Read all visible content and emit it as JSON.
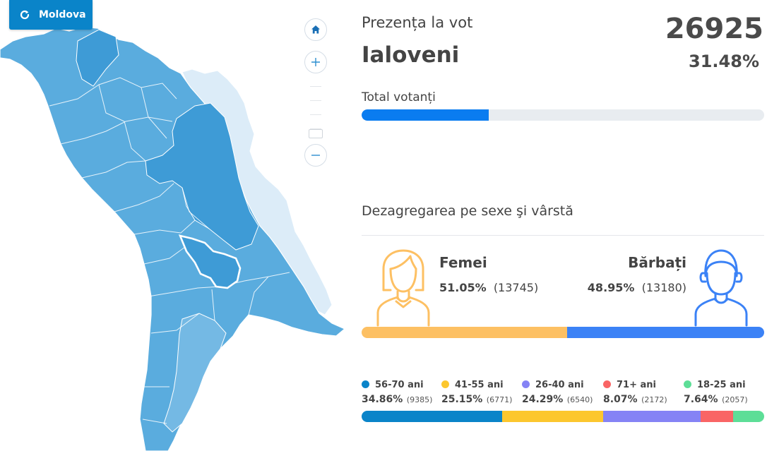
{
  "map": {
    "reset_label": "Moldova",
    "reset_icon": "refresh-icon",
    "zoom_home_icon": "home-icon",
    "zoom_in_icon": "plus-icon",
    "zoom_out_icon": "minus-icon",
    "colors": {
      "dark": "#3e9bd6",
      "mid": "#5aacde",
      "light": "#74b9e4",
      "pale": "#dcecf8",
      "highlight": "#ffffff"
    }
  },
  "turnout": {
    "label": "Prezența la vot",
    "region": "Ialoveni",
    "count": "26925",
    "percent": "31.48%",
    "total_label": "Total votanți",
    "progress_fraction": 0.315,
    "progress_color": "#0a7cf0"
  },
  "breakdown": {
    "title": "Dezagregarea pe sexe şi vârstă",
    "female": {
      "title": "Femei",
      "percent": "51.05%",
      "count": "(13745)",
      "fraction": 0.5105,
      "color": "#fdc063",
      "icon": "female-avatar-icon"
    },
    "male": {
      "title": "Bărbați",
      "percent": "48.95%",
      "count": "(13180)",
      "fraction": 0.4895,
      "color": "#3b82f6",
      "icon": "male-avatar-icon"
    },
    "ages": [
      {
        "label": "56-70 ani",
        "percent": "34.86%",
        "count": "(9385)",
        "fraction": 0.3486,
        "color": "#0a84c9"
      },
      {
        "label": "41-55 ani",
        "percent": "25.15%",
        "count": "(6771)",
        "fraction": 0.2515,
        "color": "#fcc72e"
      },
      {
        "label": "26-40 ani",
        "percent": "24.29%",
        "count": "(6540)",
        "fraction": 0.2429,
        "color": "#8583f5"
      },
      {
        "label": "71+ ani",
        "percent": "8.07%",
        "count": "(2172)",
        "fraction": 0.0807,
        "color": "#f96565"
      },
      {
        "label": "18-25 ani",
        "percent": "7.64%",
        "count": "(2057)",
        "fraction": 0.0764,
        "color": "#5dde97"
      }
    ]
  }
}
